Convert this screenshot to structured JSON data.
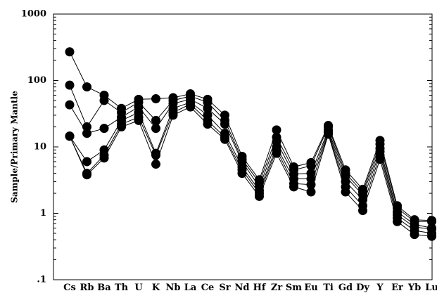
{
  "chart_data": {
    "type": "line",
    "title": "",
    "xlabel": "",
    "ylabel": "Sample/Primary Mantle",
    "yscale": "log",
    "ylim": [
      0.1,
      1000
    ],
    "yticks": [
      ".1",
      "1",
      "10",
      "100",
      "1000"
    ],
    "grid": false,
    "categories": [
      "Cs",
      "Rb",
      "Ba",
      "Th",
      "U",
      "K",
      "Nb",
      "La",
      "Ce",
      "Sr",
      "Nd",
      "Hf",
      "Zr",
      "Sm",
      "Eu",
      "Ti",
      "Gd",
      "Dy",
      "Y",
      "Er",
      "Yb",
      "Lu"
    ],
    "marker": "filled-circle",
    "series": [
      {
        "values": [
          270,
          80,
          60,
          38,
          52,
          53,
          55,
          63,
          52,
          30,
          7.2,
          3.2,
          18,
          5,
          5.8,
          21,
          4.5,
          2.3,
          12.5,
          1.3,
          0.8,
          0.78
        ]
      },
      {
        "values": [
          85,
          20,
          50,
          33,
          47,
          25,
          50,
          58,
          47,
          25,
          6.5,
          2.9,
          14,
          4.5,
          5.2,
          20,
          4,
          2.1,
          11,
          1.2,
          0.75,
          0.75
        ]
      },
      {
        "values": [
          43,
          16,
          19,
          28,
          40,
          19,
          45,
          52,
          38,
          22,
          6,
          2.5,
          12,
          3.9,
          4,
          18,
          3.6,
          1.9,
          9.5,
          1.05,
          0.68,
          0.6
        ]
      },
      {
        "values": [
          14.5,
          6,
          9,
          25,
          33,
          8,
          38,
          47,
          30,
          16,
          5,
          2.2,
          10,
          3.3,
          3.3,
          17,
          3,
          1.6,
          8.5,
          0.95,
          0.62,
          0.58
        ]
      },
      {
        "values": [
          14.5,
          4,
          7.5,
          22,
          28,
          7.5,
          33,
          44,
          25,
          14,
          4.5,
          2,
          9,
          2.8,
          2.7,
          16,
          2.5,
          1.3,
          7.5,
          0.85,
          0.55,
          0.5
        ]
      },
      {
        "values": [
          14.5,
          3.8,
          6.8,
          20,
          25,
          5.5,
          30,
          40,
          22,
          13,
          4,
          1.8,
          8,
          2.5,
          2.1,
          15.5,
          2.1,
          1.1,
          6.5,
          0.75,
          0.48,
          0.45
        ]
      }
    ]
  }
}
